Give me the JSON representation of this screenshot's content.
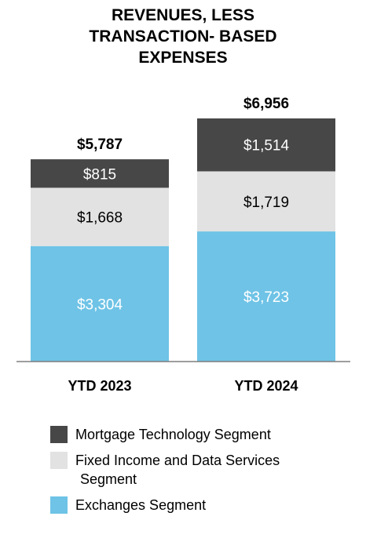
{
  "chart_data": {
    "type": "bar",
    "stacked": true,
    "title_lines": [
      "REVENUES, LESS",
      "TRANSACTION- BASED",
      "EXPENSES"
    ],
    "categories": [
      "YTD 2023",
      "YTD 2024"
    ],
    "totals": [
      "$5,787",
      "$6,956"
    ],
    "total_values": [
      5787,
      6956
    ],
    "series": [
      {
        "name": "Exchanges Segment",
        "values": [
          3304,
          3723
        ],
        "labels": [
          "$3,304",
          "$3,723"
        ],
        "color": "#6ec3e6",
        "label_color": "#ffffff"
      },
      {
        "name": "Fixed Income and Data Services Segment",
        "values": [
          1668,
          1719
        ],
        "labels": [
          "$1,668",
          "$1,719"
        ],
        "color": "#e2e2e2",
        "label_color": "#000000"
      },
      {
        "name": "Mortgage Technology Segment",
        "values": [
          815,
          1514
        ],
        "labels": [
          "$815",
          "$1,514"
        ],
        "color": "#474747",
        "label_color": "#ffffff"
      }
    ],
    "legend_placement": "bottom",
    "grid": false
  },
  "legend": [
    {
      "lines": [
        "Mortgage Technology Segment"
      ],
      "color": "#474747"
    },
    {
      "lines": [
        "Fixed Income and Data Services",
        "Segment"
      ],
      "color": "#e2e2e2"
    },
    {
      "lines": [
        "Exchanges Segment"
      ],
      "color": "#6ec3e6"
    }
  ]
}
